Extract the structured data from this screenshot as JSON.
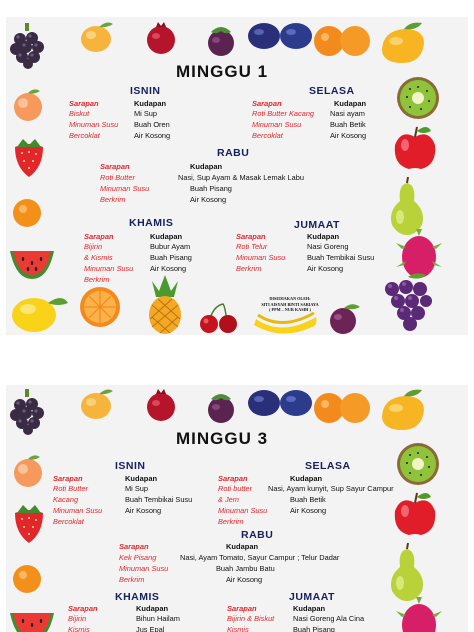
{
  "page1": {
    "title": "MINGGU 1",
    "isnin": {
      "day": "ISNIN",
      "sarapan_label": "Sarapan",
      "sarapan": [
        "Biskut",
        "Minuman Susu",
        "Bercoklat"
      ],
      "kudapan_label": "Kudapan",
      "kudapan": [
        "Mi Sup",
        "Buah Oren",
        "Air Kosong"
      ]
    },
    "selasa": {
      "day": "SELASA",
      "sarapan_label": "Sarapan",
      "sarapan": [
        "Roti Butter Kacang",
        "Minuman Susu",
        "Bercoklat"
      ],
      "kudapan_label": "Kudapan",
      "kudapan": [
        "Nasi ayam",
        "Buah Betik",
        "Air Kosong"
      ]
    },
    "rabu": {
      "day": "RABU",
      "sarapan_label": "Sarapan",
      "sarapan": [
        "Roti Butter",
        "Minuman Susu",
        "Berkrim"
      ],
      "kudapan_label": "Kudapan",
      "kudapan": [
        "Nasi, Sup Ayam  & Masak  Lemak Labu",
        "Buah Pisang",
        "Air Kosong"
      ]
    },
    "khamis": {
      "day": "KHAMIS",
      "sarapan_label": "Sarapan",
      "sarapan": [
        "Bijirin",
        "& Kismis",
        "Minuman Susu",
        "Berkrim"
      ],
      "kudapan_label": "Kudapan",
      "kudapan": [
        "Bubur Ayam",
        "Buah Pisang",
        "Air Kosong"
      ]
    },
    "jumaat": {
      "day": "JUMAAT",
      "sarapan_label": "Sarapan",
      "sarapan": [
        "Roti Telur",
        "Minuman Susu",
        "Berkrim"
      ],
      "kudapan_label": "Kudapan",
      "kudapan": [
        "Nasi Goreng",
        "Buah Tembikai Susu",
        "Air Kosong"
      ]
    },
    "credit": [
      "DISEDIAKAN OLEH:",
      "SITI AISYAH BINTI SARIAYA",
      "( PPM – NUR KASIH )"
    ]
  },
  "page2": {
    "title": "MINGGU 3",
    "isnin": {
      "day": "ISNIN",
      "sarapan_label": "Sarapan",
      "sarapan": [
        "Roti Butter",
        "Kacang",
        "Minuman Susu",
        "Bercoklat"
      ],
      "kudapan_label": "Kudapan",
      "kudapan": [
        "Mi Sup",
        "Buah Tembikai Susu",
        "Air Kosong"
      ]
    },
    "selasa": {
      "day": "SELASA",
      "sarapan_label": "Sarapan",
      "sarapan": [
        "Roti butter",
        "& Jem",
        "Minuman Susu",
        "Berkrim"
      ],
      "kudapan_label": "Kudapan",
      "kudapan": [
        "Nasi, Ayam kunyit, Sup Sayur  Campur",
        "Buah Betik",
        "Air Kosong"
      ]
    },
    "rabu": {
      "day": "RABU",
      "sarapan_label": "Sarapan",
      "sarapan": [
        "Kek Pisang",
        "Minuman Susu",
        "Berkrim"
      ],
      "kudapan_label": "Kudapan",
      "kudapan": [
        "Nasi,  Ayam Tomato, Sayur Campur ; Telur Dadar",
        "Buah  Jambu Batu",
        "Air Kosong"
      ]
    },
    "khamis": {
      "day": "KHAMIS",
      "sarapan_label": "Sarapan",
      "sarapan": [
        "Bijirin",
        "Kismis"
      ],
      "kudapan_label": "Kudapan",
      "kudapan": [
        "Bihun Hailam",
        "Jus Epal"
      ]
    },
    "jumaat": {
      "day": "JUMAAT",
      "sarapan_label": "Sarapan",
      "sarapan": [
        "Bijirin & Biskut",
        "Kismis"
      ],
      "kudapan_label": "Kudapan",
      "kudapan": [
        "Nasi Goreng Ala Cina",
        "Buah Pisang"
      ]
    }
  }
}
